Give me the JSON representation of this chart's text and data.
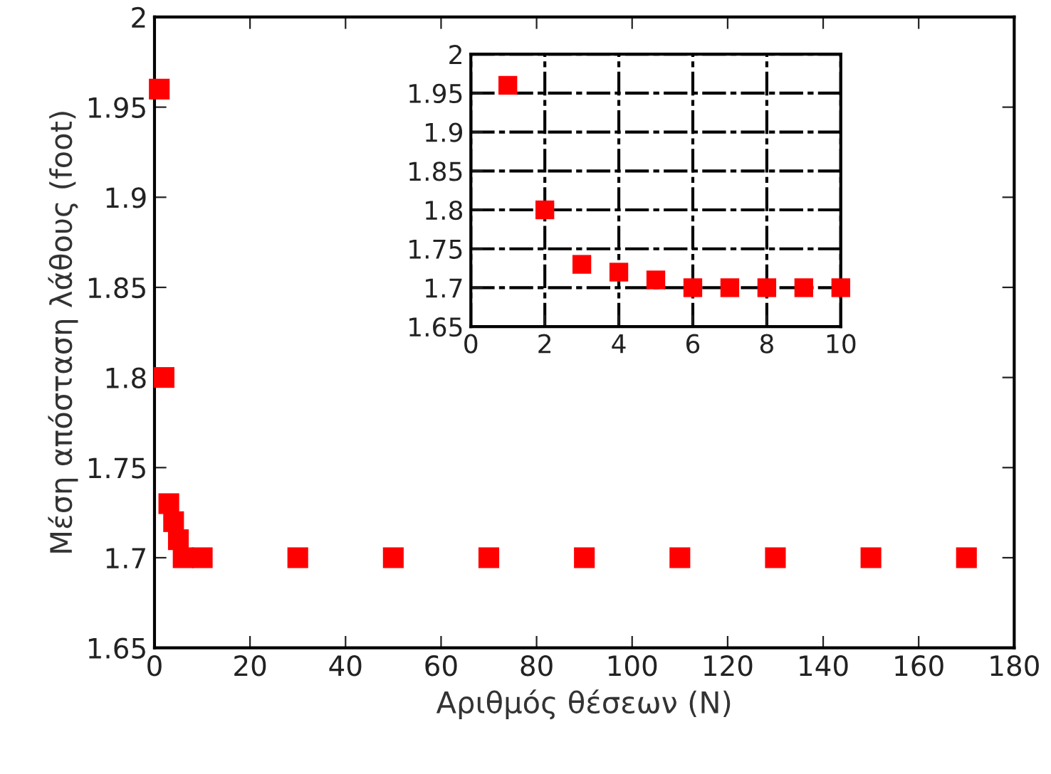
{
  "chart_data": [
    {
      "type": "scatter",
      "xlabel": "Αριθμός θέσεων (N)",
      "ylabel": "Μέση απόσταση λάθους (foot)",
      "marker": "square",
      "grid": false,
      "legend": false,
      "x": [
        1,
        2,
        3,
        4,
        5,
        6,
        7,
        8,
        9,
        10,
        30,
        50,
        70,
        90,
        110,
        130,
        150,
        170
      ],
      "series": [
        {
          "color": "#ff0000",
          "values": [
            1.96,
            1.8,
            1.73,
            1.72,
            1.71,
            1.7,
            null,
            null,
            null,
            1.7,
            1.7,
            1.7,
            1.7,
            1.7,
            1.7,
            1.7,
            1.7,
            1.7
          ]
        }
      ],
      "xlim": [
        0,
        180
      ],
      "xticks": [
        0,
        20,
        40,
        60,
        80,
        100,
        120,
        140,
        160,
        180
      ],
      "ylim": [
        1.65,
        2
      ],
      "yticks": [
        1.65,
        1.7,
        1.75,
        1.8,
        1.85,
        1.9,
        1.95,
        2
      ]
    },
    {
      "type": "scatter",
      "marker": "square",
      "grid": true,
      "line_style": "dashed",
      "legend": false,
      "x": [
        1,
        2,
        3,
        4,
        5,
        6,
        7,
        8,
        9,
        10
      ],
      "series": [
        {
          "color": "#ff0000",
          "values": [
            1.96,
            1.8,
            1.73,
            1.72,
            1.71,
            1.7,
            1.7,
            1.7,
            1.7,
            1.7
          ]
        }
      ],
      "xlim": [
        0,
        10
      ],
      "xticks": [
        0,
        2,
        4,
        6,
        8,
        10
      ],
      "ylim": [
        1.65,
        2
      ],
      "yticks": [
        1.65,
        1.7,
        1.75,
        1.8,
        1.85,
        1.9,
        1.95,
        2
      ]
    }
  ]
}
